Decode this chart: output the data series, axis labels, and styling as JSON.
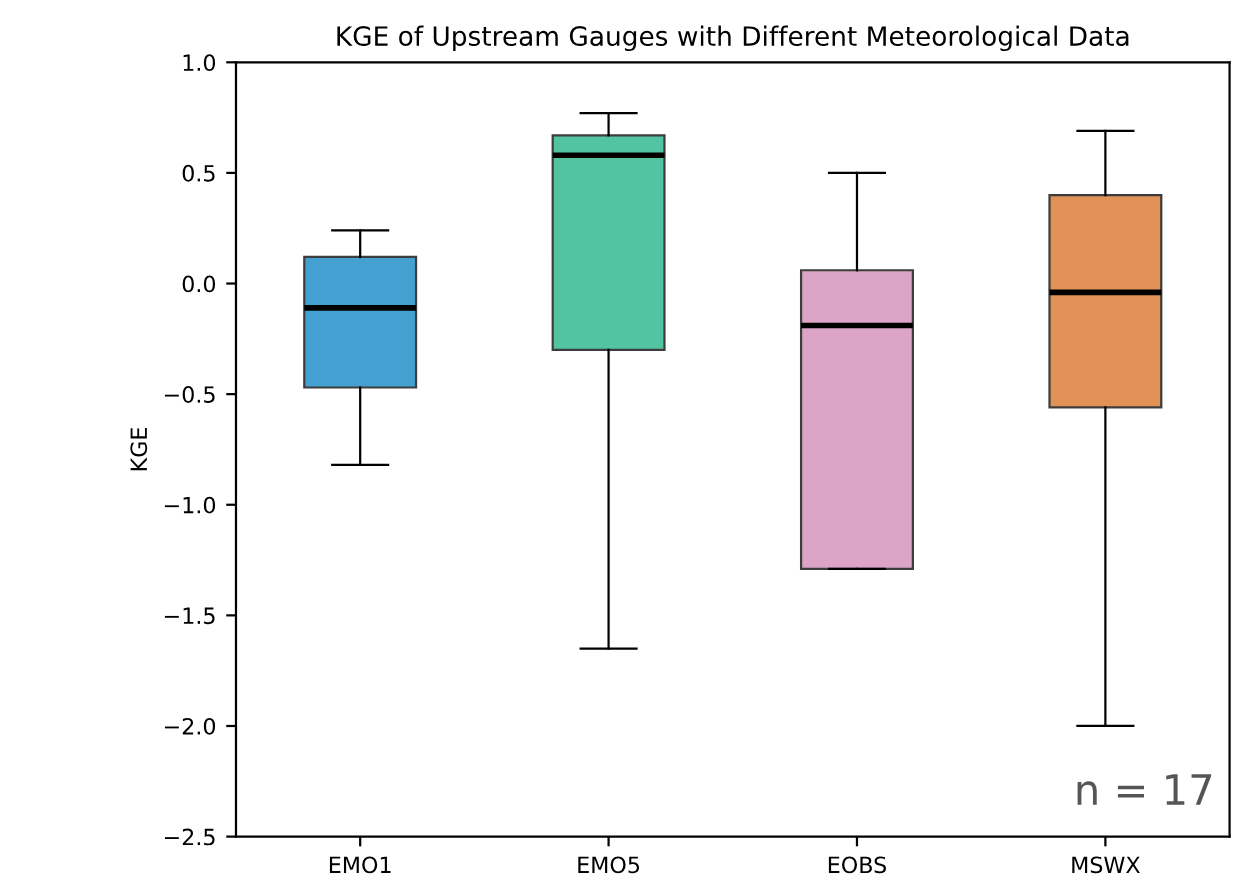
{
  "chart_data": {
    "type": "box",
    "title": "KGE of Upstream Gauges with Different Meteorological Data",
    "ylabel": "KGE",
    "categories": [
      "EMO1",
      "EMO5",
      "EOBS",
      "MSWX"
    ],
    "colors": [
      "#3a9bcf",
      "#49c19e",
      "#dba0c4",
      "#e08c4c"
    ],
    "boxes": [
      {
        "low": -0.82,
        "q1": -0.47,
        "median": -0.11,
        "q3": 0.12,
        "high": 0.24
      },
      {
        "low": -1.65,
        "q1": -0.3,
        "median": 0.58,
        "q3": 0.67,
        "high": 0.77
      },
      {
        "low": -1.29,
        "q1": -1.29,
        "median": -0.19,
        "q3": 0.06,
        "high": 0.5
      },
      {
        "low": -2.0,
        "q1": -0.56,
        "median": -0.04,
        "q3": 0.4,
        "high": 0.69
      }
    ],
    "ylim": [
      -2.5,
      1.0
    ],
    "yticks": [
      {
        "value": -2.5,
        "label": "−2.5"
      },
      {
        "value": -2,
        "label": "−2.0"
      },
      {
        "value": -1.5,
        "label": "−1.5"
      },
      {
        "value": -1,
        "label": "−1.0"
      },
      {
        "value": -0.5,
        "label": "−0.5"
      },
      {
        "value": 0,
        "label": "0.0"
      },
      {
        "value": 0.5,
        "label": "0.5"
      },
      {
        "value": 1,
        "label": "1.0"
      }
    ],
    "grid": false,
    "annotations": [
      "n = 17"
    ]
  }
}
